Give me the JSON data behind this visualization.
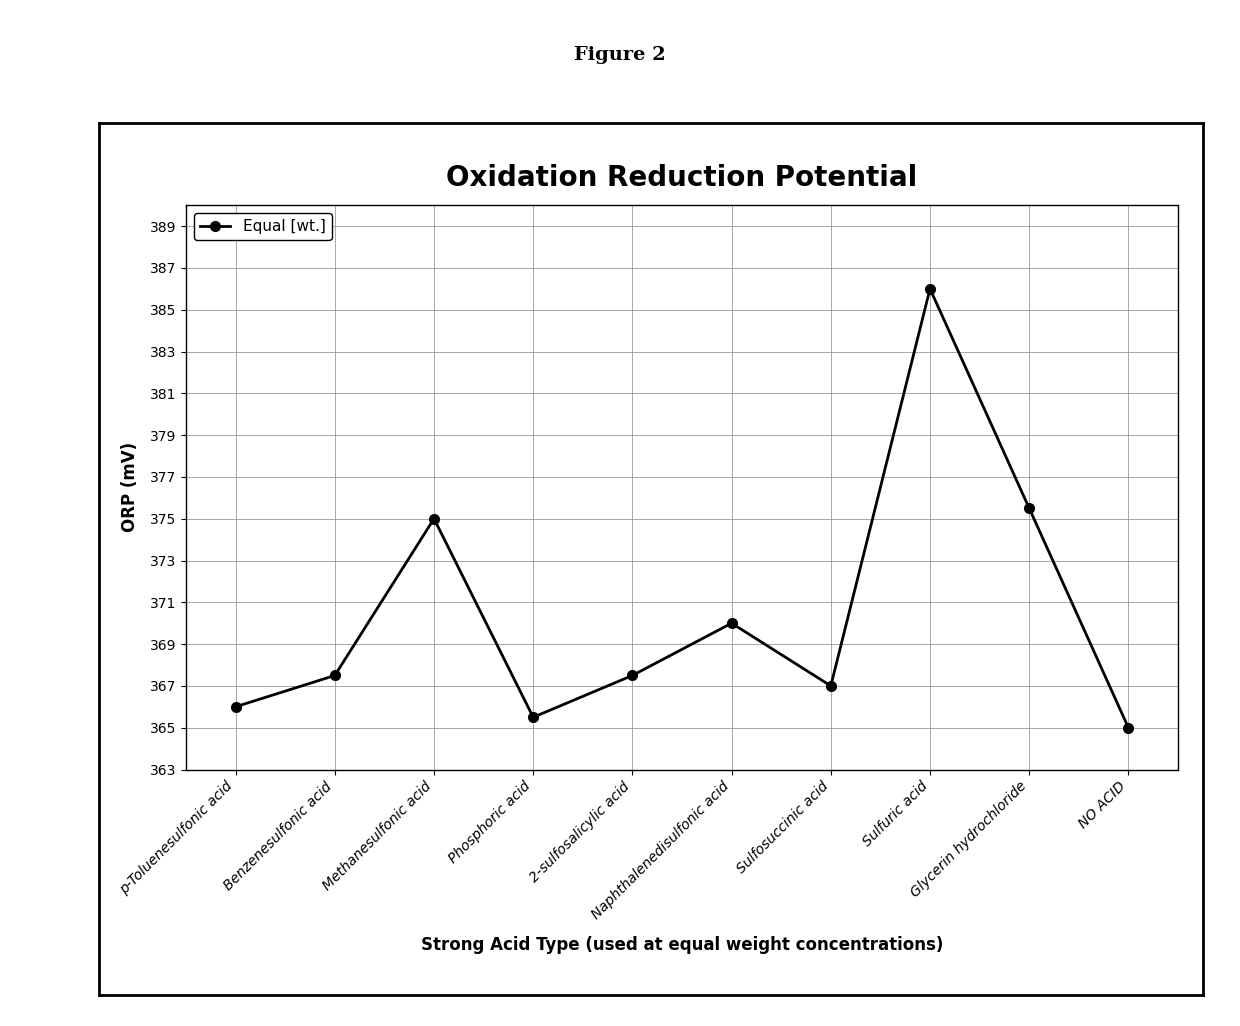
{
  "title": "Oxidation Reduction Potential",
  "figure_label": "Figure 2",
  "xlabel": "Strong Acid Type (used at equal weight concentrations)",
  "ylabel": "ORP (mV)",
  "legend_label": "Equal [wt.]",
  "categories": [
    "p-Toluenesulfonic acid",
    "Benzenesulfonic acid",
    "Methanesulfonic acid",
    "Phosphoric acid",
    "2-sulfosalicylic acid",
    "Naphthalenedisulfonic acid",
    "Sulfosuccinic acid",
    "Sulfuric acid",
    "Glycerin hydrochloride",
    "NO ACID"
  ],
  "values": [
    366.0,
    367.5,
    375.0,
    365.5,
    367.5,
    370.0,
    367.0,
    386.0,
    375.5,
    365.0
  ],
  "ylim": [
    363,
    390
  ],
  "yticks": [
    363,
    365,
    367,
    369,
    371,
    373,
    375,
    377,
    379,
    381,
    383,
    385,
    387,
    389
  ],
  "line_color": "#000000",
  "marker": "o",
  "marker_size": 7,
  "marker_facecolor": "#000000",
  "bg_color": "#ffffff",
  "plot_bg_color": "#ffffff",
  "grid_color": "#999999",
  "title_fontsize": 20,
  "label_fontsize": 12,
  "tick_fontsize": 10,
  "legend_fontsize": 11,
  "figure_label_fontsize": 14
}
